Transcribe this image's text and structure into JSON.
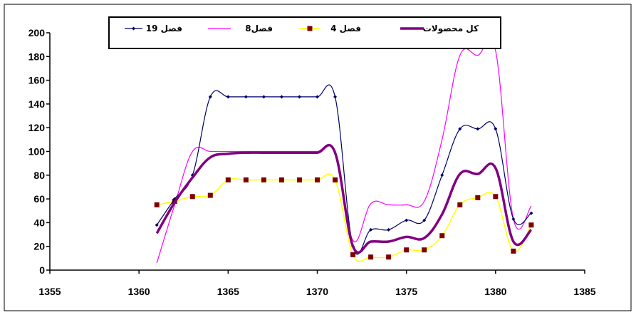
{
  "chart_data": {
    "type": "line",
    "title": "",
    "xlabel": "",
    "ylabel": "",
    "xlim": [
      1355,
      1385
    ],
    "ylim": [
      0,
      200
    ],
    "x_ticks": [
      "1355",
      "1360",
      "1365",
      "1370",
      "1375",
      "1380",
      "1385"
    ],
    "y_ticks": [
      "0",
      "20",
      "40",
      "60",
      "80",
      "100",
      "120",
      "140",
      "160",
      "180",
      "200"
    ],
    "grid": false,
    "legend_position": "top",
    "x": [
      1361,
      1362,
      1363,
      1364,
      1365,
      1366,
      1367,
      1368,
      1369,
      1370,
      1371,
      1372,
      1373,
      1374,
      1375,
      1376,
      1377,
      1378,
      1379,
      1380,
      1381,
      1382
    ],
    "series": [
      {
        "name": "فصل 19",
        "color": "#000066",
        "marker": "diamond",
        "values": [
          38,
          60,
          80,
          146,
          146,
          146,
          146,
          146,
          146,
          146,
          146,
          20,
          34,
          34,
          42,
          42,
          80,
          119,
          119,
          119,
          43,
          48
        ]
      },
      {
        "name": "فصل8",
        "color": "#ff00ff",
        "marker": "none",
        "values": [
          6,
          55,
          100,
          100,
          100,
          100,
          100,
          100,
          100,
          100,
          100,
          25,
          56,
          55,
          55,
          58,
          110,
          181,
          181,
          185,
          43,
          54
        ]
      },
      {
        "name": "فصل 4",
        "color": "#ffff00",
        "marker": "square",
        "marker_color": "#800000",
        "values": [
          55,
          58,
          62,
          63,
          76,
          76,
          76,
          76,
          76,
          76,
          76,
          13,
          11,
          11,
          17,
          17,
          29,
          55,
          61,
          62,
          16,
          38
        ]
      },
      {
        "name": "کل محصولات",
        "color": "#800080",
        "marker": "none",
        "values": [
          31,
          57,
          78,
          95,
          98,
          99,
          99,
          99,
          99,
          99,
          99,
          20,
          24,
          24,
          28,
          27,
          47,
          81,
          81,
          86,
          24,
          34
        ]
      }
    ]
  }
}
